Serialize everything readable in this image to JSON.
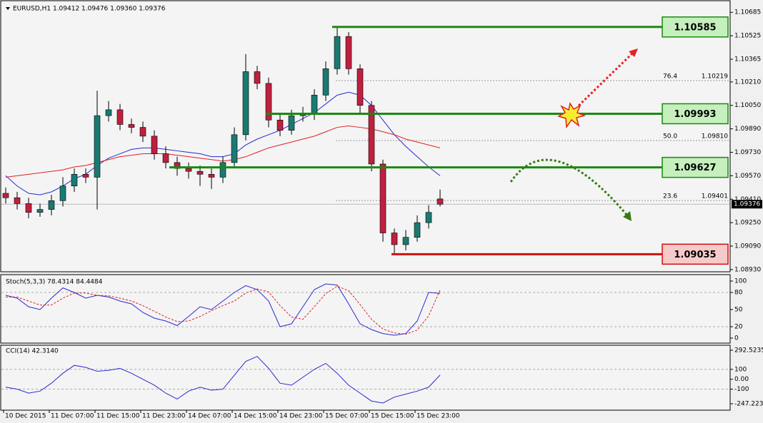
{
  "chart_data": [
    {
      "type": "candlestick",
      "title": "EURUSD,H1  1.09412 1.09476 1.09360 1.09376",
      "open": [
        1.0945,
        1.0942,
        1.0938,
        1.0932,
        1.0934,
        1.094,
        1.095,
        1.0958,
        1.0956,
        1.0998,
        1.1002,
        1.0992,
        1.099,
        1.0984,
        1.0972,
        1.0966,
        1.0962,
        1.096,
        1.0958,
        1.0956,
        1.0966,
        1.0985,
        1.1028,
        1.102,
        1.0995,
        1.0988,
        1.0998,
        1.0999,
        1.1012,
        1.103,
        1.1052,
        1.103,
        1.1005,
        1.0965,
        1.0918,
        1.091,
        1.0915,
        1.0925,
        1.09412
      ],
      "high": [
        1.0949,
        1.0946,
        1.0942,
        1.0938,
        1.0944,
        1.0956,
        1.0962,
        1.0962,
        1.1015,
        1.1008,
        1.1006,
        1.0996,
        1.0994,
        1.0988,
        1.0977,
        1.097,
        1.0966,
        1.0964,
        1.0962,
        1.097,
        1.099,
        1.104,
        1.1032,
        1.1024,
        1.0999,
        1.1002,
        1.1004,
        1.1016,
        1.1035,
        1.10585,
        1.1055,
        1.1033,
        1.1008,
        1.0968,
        1.0921,
        1.092,
        1.093,
        1.0937,
        1.09476
      ],
      "low": [
        1.0938,
        1.0934,
        1.0928,
        1.0929,
        1.093,
        1.0936,
        1.0946,
        1.0952,
        1.0934,
        1.0994,
        1.0988,
        1.0986,
        1.098,
        1.0968,
        1.0962,
        1.0957,
        1.0955,
        1.095,
        1.0948,
        1.0952,
        1.0962,
        1.0981,
        1.1016,
        1.099,
        1.0984,
        1.0985,
        1.0994,
        1.0995,
        1.1008,
        1.1026,
        1.1026,
        1.1,
        1.096,
        1.0912,
        1.09035,
        1.0906,
        1.0912,
        1.0921,
        1.0936
      ],
      "close": [
        1.0942,
        1.0938,
        1.0932,
        1.0934,
        1.094,
        1.095,
        1.0958,
        1.0956,
        1.0998,
        1.1002,
        1.0992,
        1.099,
        1.0984,
        1.0972,
        1.0966,
        1.0962,
        1.096,
        1.0958,
        1.0956,
        1.0966,
        1.0985,
        1.1028,
        1.102,
        1.0995,
        1.0988,
        1.0998,
        1.0999,
        1.1012,
        1.103,
        1.1052,
        1.103,
        1.1005,
        1.0965,
        1.0918,
        1.091,
        1.0915,
        1.0925,
        1.0932,
        1.09376
      ],
      "up_color": "#1a7a72",
      "down_color": "#c0203f",
      "series": [
        {
          "color": "#2a2ad0",
          "values": [
            1.0957,
            1.095,
            1.0945,
            1.0944,
            1.0946,
            1.095,
            1.0955,
            1.0958,
            1.0964,
            1.0969,
            1.0972,
            1.0975,
            1.0976,
            1.0976,
            1.0975,
            1.0974,
            1.0973,
            1.0972,
            1.097,
            1.097,
            1.0972,
            1.0978,
            1.0982,
            1.0985,
            1.0988,
            1.0992,
            1.0996,
            1.1,
            1.1006,
            1.1012,
            1.1014,
            1.1012,
            1.1005,
            1.0995,
            1.0985,
            1.0977,
            1.097,
            1.0963,
            1.0957
          ]
        },
        {
          "color": "#e02020",
          "values": [
            1.0956,
            1.0957,
            1.0958,
            1.0959,
            1.096,
            1.0961,
            1.0963,
            1.0964,
            1.0966,
            1.0968,
            1.097,
            1.0971,
            1.0972,
            1.0972,
            1.0972,
            1.0971,
            1.097,
            1.0969,
            1.0968,
            1.0967,
            1.0968,
            1.097,
            1.0973,
            1.0976,
            1.0978,
            1.098,
            1.0982,
            1.0984,
            1.0987,
            1.099,
            1.0991,
            1.099,
            1.0989,
            1.0987,
            1.0985,
            1.0982,
            1.098,
            1.0978,
            1.0976
          ]
        }
      ],
      "current_price": 1.09376,
      "levels": [
        {
          "value": 1.10585,
          "color": "#1a8a10",
          "fill": "#c6efbe"
        },
        {
          "value": 1.09993,
          "color": "#1a8a10",
          "fill": "#c6efbe"
        },
        {
          "value": 1.09627,
          "color": "#1a8a10",
          "fill": "#c6efbe"
        },
        {
          "value": 1.09035,
          "color": "#d01010",
          "fill": "#f7caca"
        }
      ],
      "fibs": [
        {
          "ratio": 76.4,
          "price": {
            "value": 1.10219,
            "label": "1.10219"
          }
        },
        {
          "ratio": {
            "value": 50,
            "label": "50.0"
          },
          "price": {
            "value": 1.0981,
            "label": "1.09810"
          }
        },
        {
          "ratio": 23.6,
          "price": 1.09401
        }
      ],
      "ylim": [
        1.0891,
        1.1073
      ],
      "yticks": [
        1.10685,
        1.10525,
        1.10365,
        {
          "value": 1.1021,
          "label": "1.10210"
        },
        {
          "value": 1.1005,
          "label": "1.10050"
        },
        {
          "value": 1.0989,
          "label": "1.09890"
        },
        {
          "value": 1.0973,
          "label": "1.09730"
        },
        {
          "value": 1.0957,
          "label": "1.09570"
        },
        {
          "value": 1.0941,
          "label": "1.09410"
        },
        {
          "value": 1.0925,
          "label": "1.09250"
        },
        {
          "value": 1.0909,
          "label": "1.09090"
        },
        {
          "value": 1.0893,
          "label": "1.08930"
        }
      ],
      "xticks": [
        {
          "value": 0,
          "label": "10 Dec 2015"
        },
        {
          "value": 4,
          "label": "11 Dec 07:00"
        },
        {
          "value": 8,
          "label": "11 Dec 15:00"
        },
        {
          "value": 12,
          "label": "11 Dec 23:00"
        },
        {
          "value": 16,
          "label": "14 Dec 07:00"
        },
        {
          "value": 20,
          "label": "14 Dec 15:00"
        },
        {
          "value": 24,
          "label": "14 Dec 23:00"
        },
        {
          "value": 28,
          "label": "15 Dec 07:00"
        },
        {
          "value": 32,
          "label": "15 Dec 15:00"
        },
        {
          "value": 36,
          "label": "15 Dec 23:00"
        }
      ]
    },
    {
      "type": "line",
      "title": "Stoch(5,3,3) 78.4314 84.4484",
      "series": [
        {
          "color": "#2a2ad0",
          "dash": false,
          "values": [
            75,
            70,
            55,
            50,
            70,
            88,
            80,
            70,
            75,
            72,
            65,
            60,
            45,
            35,
            30,
            22,
            38,
            55,
            50,
            65,
            80,
            92,
            85,
            65,
            20,
            25,
            55,
            85,
            95,
            93,
            60,
            25,
            15,
            8,
            5,
            8,
            30,
            80,
            78.4314
          ]
        },
        {
          "color": "#e02020",
          "dash": true,
          "values": [
            72,
            72,
            65,
            58,
            58,
            70,
            79,
            79,
            75,
            74,
            70,
            65,
            57,
            47,
            37,
            29,
            30,
            38,
            48,
            57,
            65,
            79,
            86,
            81,
            57,
            37,
            33,
            55,
            78,
            91,
            83,
            59,
            33,
            16,
            9,
            7,
            14,
            39,
            84.4484
          ]
        }
      ],
      "levels": [
        80,
        20
      ],
      "ylim": [
        -8.75,
        108.75
      ],
      "yticks": [
        100,
        80,
        50,
        20,
        0
      ]
    },
    {
      "type": "line",
      "title": "CCI(14) 42.3140",
      "series": [
        {
          "color": "#2a2ad0",
          "dash": false,
          "values": [
            -80,
            -100,
            -140,
            -120,
            -40,
            60,
            140,
            120,
            80,
            90,
            110,
            60,
            0,
            -60,
            -140,
            -200,
            -120,
            -80,
            -110,
            -100,
            40,
            180,
            230,
            110,
            -40,
            -60,
            20,
            100,
            160,
            60,
            -60,
            -140,
            -220,
            -240,
            -180,
            -150,
            -120,
            -80,
            42.314
          ]
        }
      ],
      "levels": [
        100,
        -100
      ],
      "ylim": [
        -312,
        343
      ],
      "yticks": [
        292.5235,
        100,
        {
          "value": 0,
          "label": "0.00"
        },
        -100,
        -247.2239
      ]
    }
  ]
}
